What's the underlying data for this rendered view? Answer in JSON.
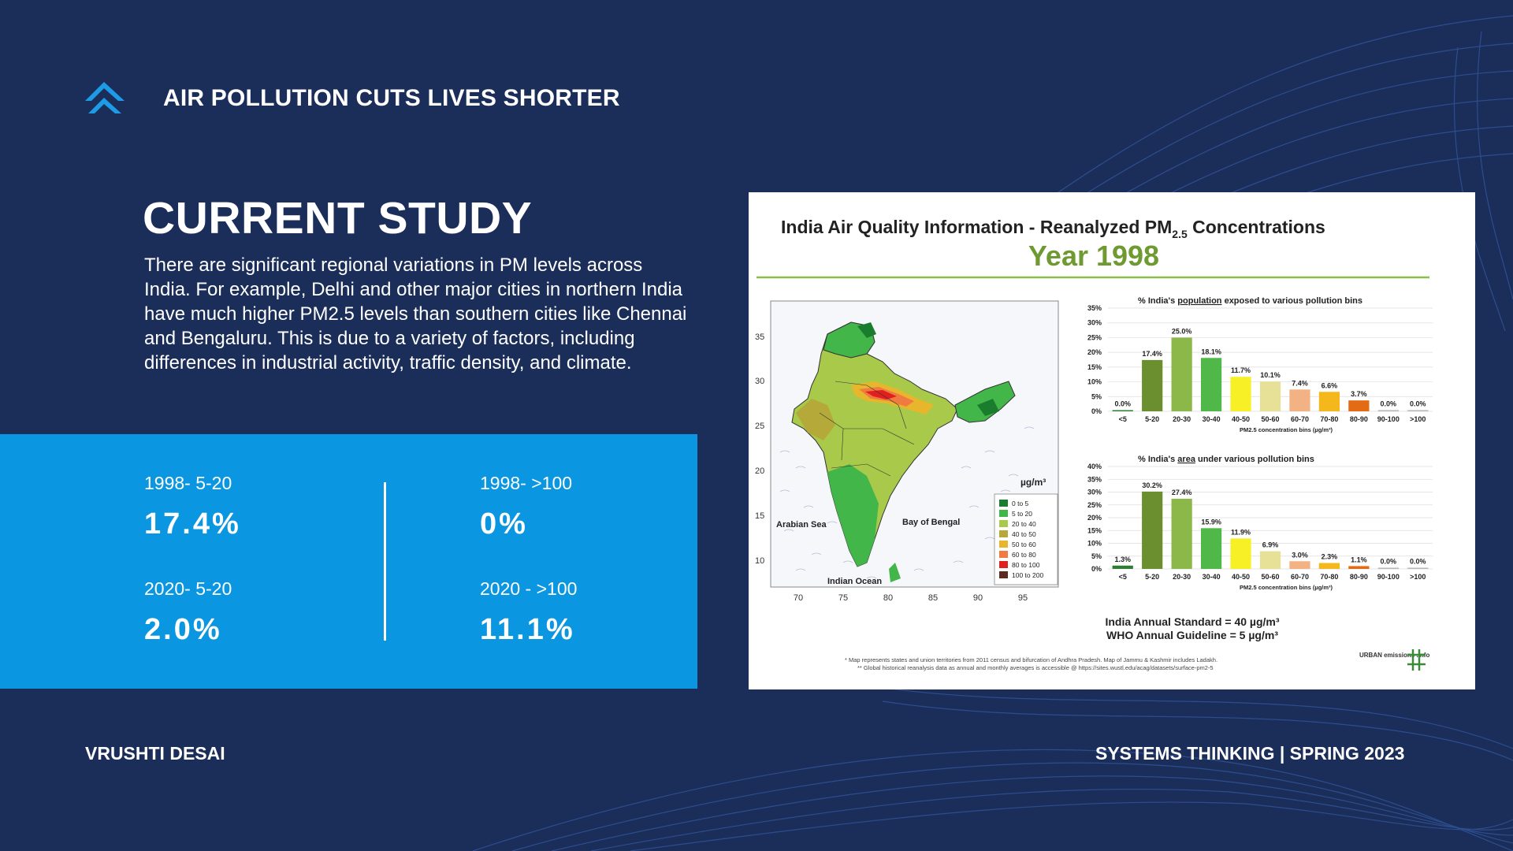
{
  "header": {
    "title": "AIR POLLUTION CUTS LIVES SHORTER",
    "logo_icon": "chevron-up-arrows-icon"
  },
  "study": {
    "heading": "CURRENT STUDY",
    "body": "There are significant regional variations in PM levels across India. For example, Delhi and other major cities in northern India have much higher PM2.5 levels than southern cities like Chennai and Bengaluru. This is due to a variety of factors, including differences in industrial activity, traffic density, and climate."
  },
  "stats": [
    {
      "label": "1998- 5-20",
      "value": "17.4%"
    },
    {
      "label": "1998- >100",
      "value": "0%"
    },
    {
      "label": "2020- 5-20",
      "value": "2.0%"
    },
    {
      "label": "2020 - >100",
      "value": "11.1%"
    }
  ],
  "chart_card": {
    "title_main": "India Air Quality Information - Reanalyzed PM",
    "title_sub": "2.5",
    "title_end": " Concentrations",
    "year": "Year 1998",
    "map": {
      "lat_ticks": [
        "35",
        "30",
        "25",
        "20",
        "15",
        "10"
      ],
      "lon_ticks": [
        "70",
        "75",
        "80",
        "85",
        "90",
        "95"
      ],
      "labels": {
        "arabian_sea": "Arabian Sea",
        "bay_of_bengal": "Bay of Bengal",
        "indian_ocean": "Indian Ocean"
      },
      "legend_unit": "µg/m³",
      "legend": [
        {
          "label": "0 to 5",
          "color": "#1a7d2e"
        },
        {
          "label": "5 to 20",
          "color": "#43b649"
        },
        {
          "label": "20 to 40",
          "color": "#a9c94a"
        },
        {
          "label": "40 to 50",
          "color": "#b5a93a"
        },
        {
          "label": "50 to 60",
          "color": "#e8b62c"
        },
        {
          "label": "60 to 80",
          "color": "#f07a40"
        },
        {
          "label": "80 to 100",
          "color": "#e0201e"
        },
        {
          "label": "100 to 200",
          "color": "#5a2b1e"
        }
      ]
    },
    "bin_colors": [
      "#2e7d32",
      "#6b8e2f",
      "#8cb84a",
      "#4fb848",
      "#f7f027",
      "#e6e196",
      "#f3b283",
      "#f4b81c",
      "#e36b14",
      "#b5b5b5",
      "#b5b5b5"
    ],
    "x_axis_label": "PM2.5 concentration bins (µg/m³)",
    "standard_line1": "India Annual Standard = 40 µg/m³",
    "standard_line2": "WHO Annual Guideline = 5 µg/m³",
    "footnote1": "* Map represents states and union territories from 2011 census and bifurcation of Andhra Pradesh. Map of Jammu & Kashmir includes Ladakh.",
    "footnote2": "** Global historical reanalysis data as annual and monthly averages is accessible @ https://sites.wustl.edu/acag/datasets/surface-pm2-5",
    "brand": "URBAN emissions .info"
  },
  "chart_data": [
    {
      "type": "bar",
      "title": "% India's population exposed to various pollution bins",
      "title_prefix": "% India's ",
      "title_key": "population",
      "title_suffix": " exposed to various pollution bins",
      "categories": [
        "<5",
        "5-20",
        "20-30",
        "30-40",
        "40-50",
        "50-60",
        "60-70",
        "70-80",
        "80-90",
        "90-100",
        ">100"
      ],
      "values": [
        0.0,
        17.4,
        25.0,
        18.1,
        11.7,
        10.1,
        7.4,
        6.6,
        3.7,
        0.0,
        0.0
      ],
      "value_labels": [
        "0.0%",
        "17.4%",
        "25.0%",
        "18.1%",
        "11.7%",
        "10.1%",
        "7.4%",
        "6.6%",
        "3.7%",
        "0.0%",
        "0.0%"
      ],
      "yticks": [
        "35%",
        "30%",
        "25%",
        "20%",
        "15%",
        "10%",
        "5%",
        "0%"
      ],
      "ylim": [
        0,
        35
      ],
      "xlabel": "PM2.5 concentration bins (µg/m³)"
    },
    {
      "type": "bar",
      "title": "% India's area under various pollution bins",
      "title_prefix": "% India's ",
      "title_key": "area",
      "title_suffix": " under various pollution bins",
      "categories": [
        "<5",
        "5-20",
        "20-30",
        "30-40",
        "40-50",
        "50-60",
        "60-70",
        "70-80",
        "80-90",
        "90-100",
        ">100"
      ],
      "values": [
        1.3,
        30.2,
        27.4,
        15.9,
        11.9,
        6.9,
        3.0,
        2.3,
        1.1,
        0.0,
        0.0
      ],
      "value_labels": [
        "1.3%",
        "30.2%",
        "27.4%",
        "15.9%",
        "11.9%",
        "6.9%",
        "3.0%",
        "2.3%",
        "1.1%",
        "0.0%",
        "0.0%"
      ],
      "yticks": [
        "40%",
        "35%",
        "30%",
        "25%",
        "20%",
        "15%",
        "10%",
        "5%",
        "0%"
      ],
      "ylim": [
        0,
        40
      ],
      "xlabel": "PM2.5 concentration bins (µg/m³)"
    }
  ],
  "footer": {
    "author": "VRUSHTI DESAI",
    "course": "SYSTEMS THINKING |  SPRING 2023"
  }
}
